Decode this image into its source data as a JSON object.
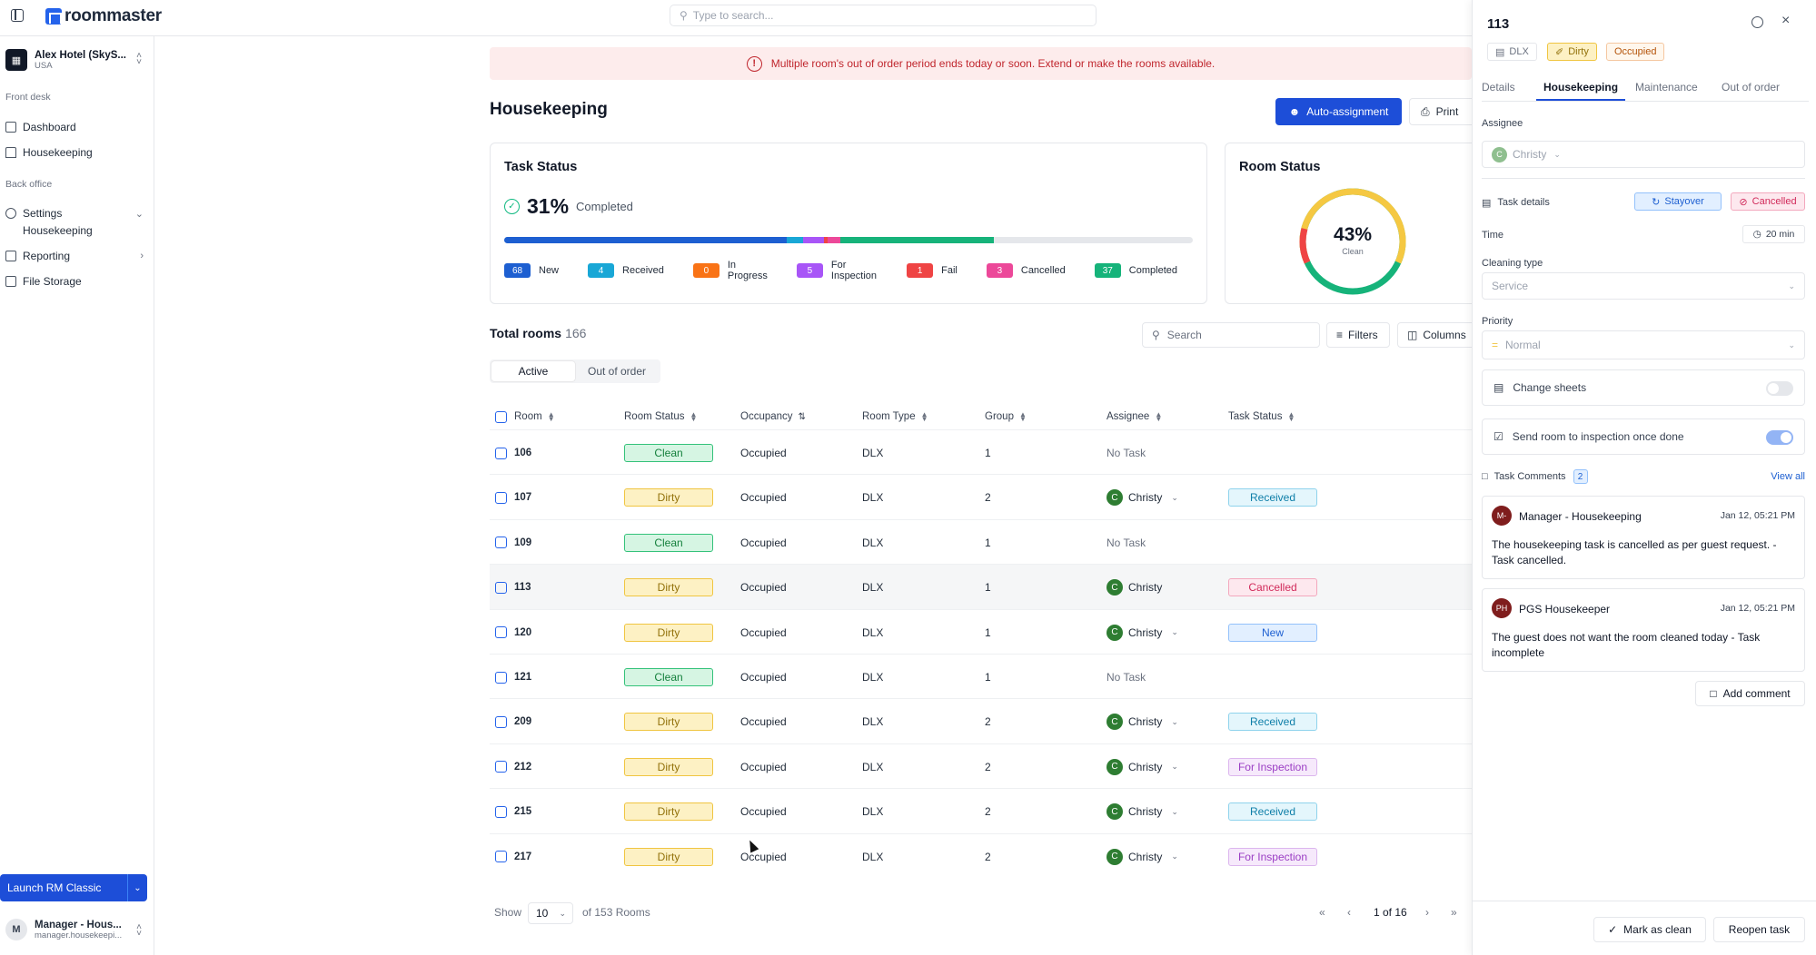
{
  "app": {
    "logo": "roommaster",
    "search_placeholder": "Type to search..."
  },
  "sidebar": {
    "hotel_name": "Alex Hotel (SkyS...",
    "hotel_country": "USA",
    "front_desk_label": "Front desk",
    "back_office_label": "Back office",
    "items": {
      "dashboard": "Dashboard",
      "housekeeping": "Housekeeping",
      "settings": "Settings",
      "settings_housekeeping": "Housekeeping",
      "reporting": "Reporting",
      "file_storage": "File Storage"
    },
    "launch_label": "Launch RM Classic",
    "user_initial": "M",
    "user_name": "Manager - Hous...",
    "user_email": "manager.housekeepi..."
  },
  "alert": {
    "text": "Multiple room's out of order period ends today or soon. Extend or make the rooms available."
  },
  "header": {
    "title": "Housekeeping",
    "auto_assignment": "Auto-assignment",
    "print": "Print"
  },
  "task_status": {
    "title": "Task Status",
    "percent": "31%",
    "completed_label": "Completed",
    "legend": [
      {
        "count": "68",
        "label": "New",
        "color": "#1d5fd1",
        "share": 0.41
      },
      {
        "count": "4",
        "label": "Received",
        "color": "#19a7d6",
        "share": 0.024
      },
      {
        "count": "0",
        "label": "In Progress",
        "color": "#f97316",
        "share": 0
      },
      {
        "count": "5",
        "label": "For Inspection",
        "color": "#a855f7",
        "share": 0.03
      },
      {
        "count": "1",
        "label": "Fail",
        "color": "#ef4444",
        "share": 0.006
      },
      {
        "count": "3",
        "label": "Cancelled",
        "color": "#ec4899",
        "share": 0.018
      },
      {
        "count": "37",
        "label": "Completed",
        "color": "#16b37a",
        "share": 0.223
      }
    ]
  },
  "room_status": {
    "title": "Room Status",
    "percent": "43%",
    "label": "Clean"
  },
  "table": {
    "total_label": "Total rooms",
    "total_count": "166",
    "search_placeholder": "Search",
    "filters": "Filters",
    "columns": "Columns",
    "tab_active": "Active",
    "tab_out_of_order": "Out of order",
    "headers": {
      "room": "Room",
      "room_status": "Room Status",
      "occupancy": "Occupancy",
      "room_type": "Room Type",
      "group": "Group",
      "assignee": "Assignee",
      "task_status": "Task Status"
    },
    "rows": [
      {
        "room": "106",
        "status": "Clean",
        "occupancy": "Occupied",
        "type": "DLX",
        "group": "1",
        "assignee": "No Task",
        "task": ""
      },
      {
        "room": "107",
        "status": "Dirty",
        "occupancy": "Occupied",
        "type": "DLX",
        "group": "2",
        "assignee": "Christy",
        "task": "Received"
      },
      {
        "room": "109",
        "status": "Clean",
        "occupancy": "Occupied",
        "type": "DLX",
        "group": "1",
        "assignee": "No Task",
        "task": ""
      },
      {
        "room": "113",
        "status": "Dirty",
        "occupancy": "Occupied",
        "type": "DLX",
        "group": "1",
        "assignee": "Christy",
        "task": "Cancelled"
      },
      {
        "room": "120",
        "status": "Dirty",
        "occupancy": "Occupied",
        "type": "DLX",
        "group": "1",
        "assignee": "Christy",
        "task": "New"
      },
      {
        "room": "121",
        "status": "Clean",
        "occupancy": "Occupied",
        "type": "DLX",
        "group": "1",
        "assignee": "No Task",
        "task": ""
      },
      {
        "room": "209",
        "status": "Dirty",
        "occupancy": "Occupied",
        "type": "DLX",
        "group": "2",
        "assignee": "Christy",
        "task": "Received"
      },
      {
        "room": "212",
        "status": "Dirty",
        "occupancy": "Occupied",
        "type": "DLX",
        "group": "2",
        "assignee": "Christy",
        "task": "For Inspection"
      },
      {
        "room": "215",
        "status": "Dirty",
        "occupancy": "Occupied",
        "type": "DLX",
        "group": "2",
        "assignee": "Christy",
        "task": "Received"
      },
      {
        "room": "217",
        "status": "Dirty",
        "occupancy": "Occupied",
        "type": "DLX",
        "group": "2",
        "assignee": "Christy",
        "task": "For Inspection"
      }
    ],
    "assignee_initial": "C",
    "show_label": "Show",
    "page_size": "10",
    "of_rooms": "of 153 Rooms",
    "page_info": "1 of 16"
  },
  "panel": {
    "title": "113",
    "badge_type": "DLX",
    "badge_status": "Dirty",
    "badge_occupancy": "Occupied",
    "tabs": {
      "details": "Details",
      "housekeeping": "Housekeeping",
      "maintenance": "Maintenance",
      "out_of_order": "Out of order"
    },
    "assignee_label": "Assignee",
    "assignee_initial": "C",
    "assignee_value": "Christy",
    "task_details_label": "Task details",
    "stayover": "Stayover",
    "cancelled": "Cancelled",
    "time_label": "Time",
    "time_value": "20 min",
    "cleaning_type_label": "Cleaning type",
    "cleaning_type_value": "Service",
    "priority_label": "Priority",
    "priority_value": "Normal",
    "change_sheets": "Change sheets",
    "send_inspection": "Send room to inspection once done",
    "comments_label": "Task Comments",
    "comments_count": "2",
    "view_all": "View all",
    "comments": [
      {
        "initials": "M-",
        "name": "Manager - Housekeeping",
        "date": "Jan 12, 05:21 PM",
        "text": "The housekeeping task is cancelled as per guest request. - Task cancelled."
      },
      {
        "initials": "PH",
        "name": "PGS Housekeeper",
        "date": "Jan 12, 05:21 PM",
        "text": "The guest does not want the room cleaned today - Task incomplete"
      }
    ],
    "add_comment": "Add comment",
    "mark_clean": "Mark as clean",
    "reopen": "Reopen task"
  }
}
